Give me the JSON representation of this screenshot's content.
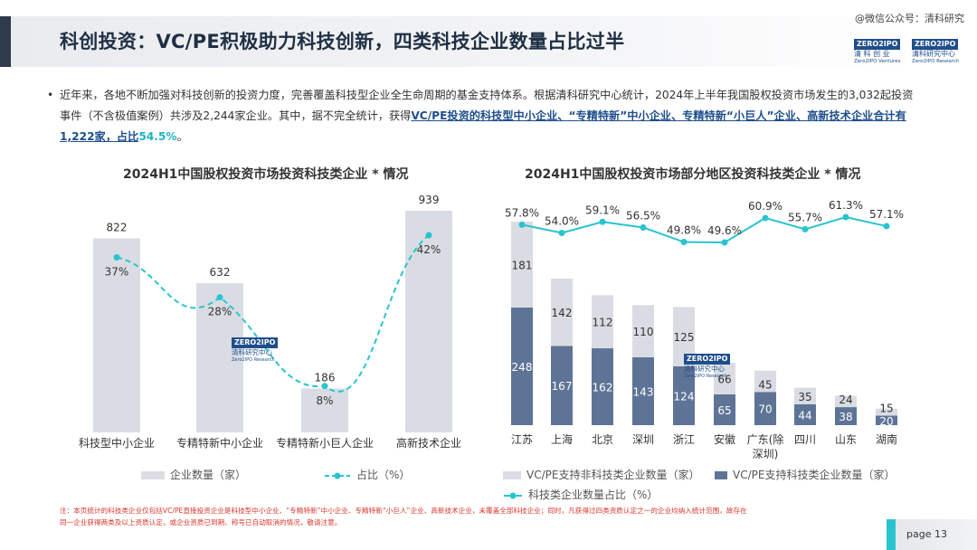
{
  "page": {
    "title": "科创投资：VC/PE积极助力科技创新，四类科技企业数量占比过半",
    "watermark": "@微信公众号：清科研究",
    "logo_zero_badge": "ZERO2IPO",
    "logo_zero_text": "清 科 创 业",
    "logo_zero_sub": "Zero2IPO Ventures",
    "logo_qk_badge": "ZERO2IPO",
    "logo_qk_text": "清科研究中心",
    "logo_qk_sub": "Zero2IPO Research",
    "bullet": "•",
    "intro_part1": "近年来，各地不断加强对科技创新的投资力度，完善覆盖科技型企业全生命周期的基金支持体系。根据清科研究中心统计，2024年上半年我国股权投资市场发生的3,032起投资事件（不含极值案例）共涉及2,244家企业。其中，据不完全统计，获得",
    "intro_highlight": "VC/PE投资的科技型中小企业、“专精特新”中小企业、专精特新“小巨人”企业、高新技术企业合计有1,222家，占比",
    "intro_percent": "54.5%",
    "intro_end": "。",
    "footnote": "注：本页统计的科技类企业仅包括VC/PE直接投资企业是科技型中小企业、“专精特新”中小企业、专精特新“小巨人”企业、高新技术企业，未覆盖全部科技企业；同时，凡获得过四类资质认定之一的企业均纳入统计范围，故存在同一企业获得两类及以上资质认定，或企业资质已到期、称号已自动取消的情况，敬请注意。",
    "page_label": "page  13",
    "inchart_logo_badge": "ZERO2IPO",
    "inchart_logo_text": "清科研究中心",
    "inchart_logo_sub": "Zero2IPO Research"
  },
  "colors": {
    "title_dark": "#1f2f44",
    "bar_light": "#d9dde3",
    "bar_dark": "#5e7496",
    "line_teal": "#29c4cf",
    "highlight_blue": "#1f4e8c",
    "note_red": "#d9342b"
  },
  "chart_data": [
    {
      "type": "bar",
      "title": "2024H1中国股权投资市场投资科技类企业 * 情况",
      "categories": [
        "科技型中小企业",
        "专精特新中小企业",
        "专精特新小巨人企业",
        "高新技术企业"
      ],
      "series": [
        {
          "name": "企业数量（家）",
          "type": "bar",
          "values": [
            822,
            632,
            186,
            939
          ]
        },
        {
          "name": "占比（%）",
          "type": "line",
          "values": [
            37,
            28,
            8,
            42
          ],
          "labels": [
            "37%",
            "28%",
            "8%",
            "42%"
          ],
          "style": "dashed-smooth"
        }
      ],
      "legend_placement": "bottom",
      "grid": false
    },
    {
      "type": "bar",
      "title": "2024H1中国股权投资市场部分地区投资科技类企业 * 情况",
      "categories": [
        "江苏",
        "上海",
        "北京",
        "深圳",
        "浙江",
        "安徽",
        "广东(除深圳)",
        "四川",
        "山东",
        "湖南"
      ],
      "series": [
        {
          "name": "VC/PE支持科技类企业数量（家）",
          "type": "stacked-bar",
          "values": [
            248,
            167,
            162,
            143,
            124,
            65,
            70,
            44,
            38,
            20
          ]
        },
        {
          "name": "VC/PE支持非科技类企业数量（家）",
          "type": "stacked-bar",
          "values": [
            181,
            142,
            112,
            110,
            125,
            66,
            45,
            35,
            24,
            15
          ]
        },
        {
          "name": "科技类企业数量占比（%）",
          "type": "line",
          "values": [
            57.8,
            54.0,
            59.1,
            56.5,
            49.8,
            49.6,
            60.9,
            55.7,
            61.3,
            57.1
          ],
          "labels": [
            "57.8%",
            "54.0%",
            "59.1%",
            "56.5%",
            "49.8%",
            "49.6%",
            "60.9%",
            "55.7%",
            "61.3%",
            "57.1%"
          ]
        }
      ],
      "legend_placement": "bottom",
      "grid": false
    }
  ]
}
